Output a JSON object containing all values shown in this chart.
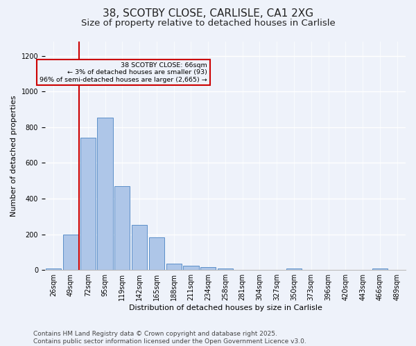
{
  "title_line1": "38, SCOTBY CLOSE, CARLISLE, CA1 2XG",
  "title_line2": "Size of property relative to detached houses in Carlisle",
  "xlabel": "Distribution of detached houses by size in Carlisle",
  "ylabel": "Number of detached properties",
  "bar_color": "#aec6e8",
  "bar_edge_color": "#5b8fc9",
  "bg_color": "#eef2fa",
  "grid_color": "#ffffff",
  "categories": [
    "26sqm",
    "49sqm",
    "72sqm",
    "95sqm",
    "119sqm",
    "142sqm",
    "165sqm",
    "188sqm",
    "211sqm",
    "234sqm",
    "258sqm",
    "281sqm",
    "304sqm",
    "327sqm",
    "350sqm",
    "373sqm",
    "396sqm",
    "420sqm",
    "443sqm",
    "466sqm",
    "489sqm"
  ],
  "values": [
    10,
    200,
    740,
    855,
    470,
    252,
    183,
    35,
    25,
    17,
    10,
    0,
    0,
    0,
    8,
    0,
    0,
    0,
    0,
    8,
    0
  ],
  "vline_x": 1.5,
  "vline_color": "#cc0000",
  "annotation_text": "38 SCOTBY CLOSE: 66sqm\n← 3% of detached houses are smaller (93)\n96% of semi-detached houses are larger (2,665) →",
  "ylim": [
    0,
    1280
  ],
  "yticks": [
    0,
    200,
    400,
    600,
    800,
    1000,
    1200
  ],
  "footer_line1": "Contains HM Land Registry data © Crown copyright and database right 2025.",
  "footer_line2": "Contains public sector information licensed under the Open Government Licence v3.0.",
  "title_fontsize": 11,
  "subtitle_fontsize": 9.5,
  "tick_fontsize": 7,
  "label_fontsize": 8,
  "footer_fontsize": 6.5
}
